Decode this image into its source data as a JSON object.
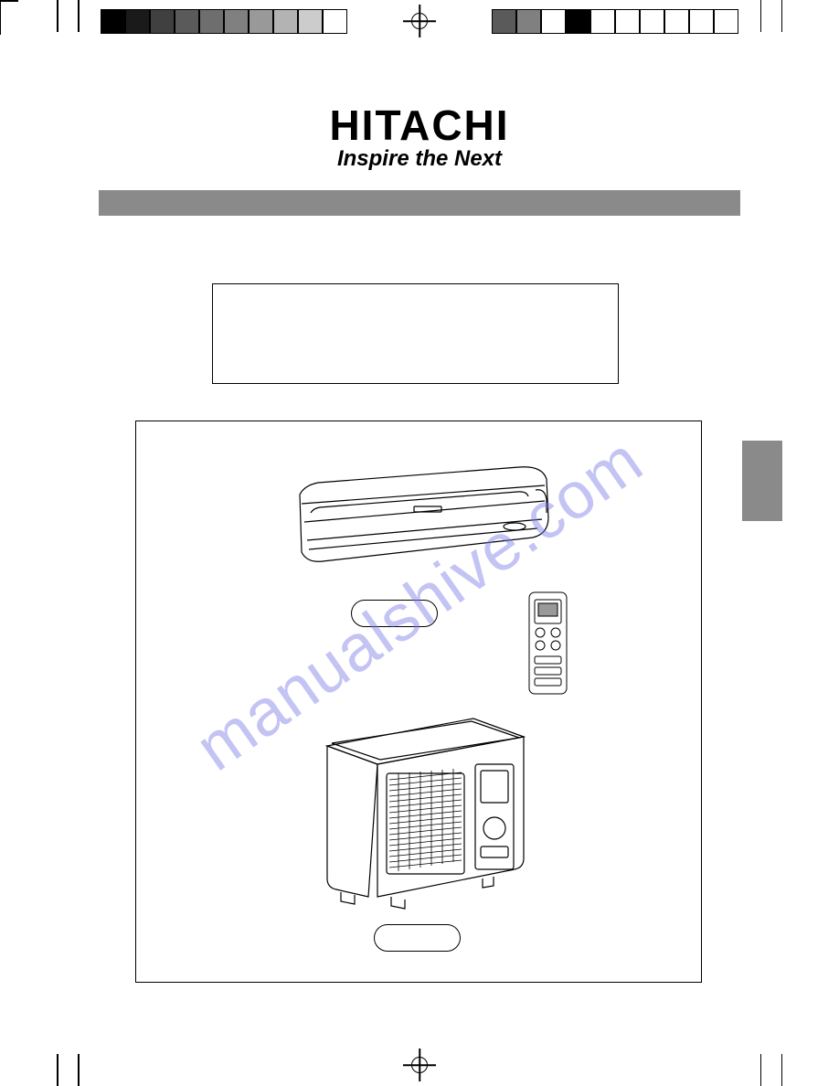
{
  "brand": {
    "name": "HITACHI",
    "tagline": "Inspire the Next"
  },
  "watermark": "manualshive.com",
  "colorBars": {
    "left": [
      "#000000",
      "#1a1a1a",
      "#404040",
      "#5a5a5a",
      "#6e6e6e",
      "#808080",
      "#999999",
      "#b3b3b3",
      "#cccccc",
      "#ffffff"
    ],
    "right": [
      "#ffffff",
      "#ffffff",
      "#ffffff",
      "#ffffff",
      "#ffffff",
      "#ffffff",
      "#000000",
      "#ffffff",
      "#808080",
      "#5a5a5a"
    ]
  },
  "style": {
    "grayBarColor": "#8a8a8a",
    "sideTabColor": "#8a8a8a",
    "borderColor": "#000000",
    "background": "#ffffff",
    "watermarkColor": "#7c7ce8"
  }
}
